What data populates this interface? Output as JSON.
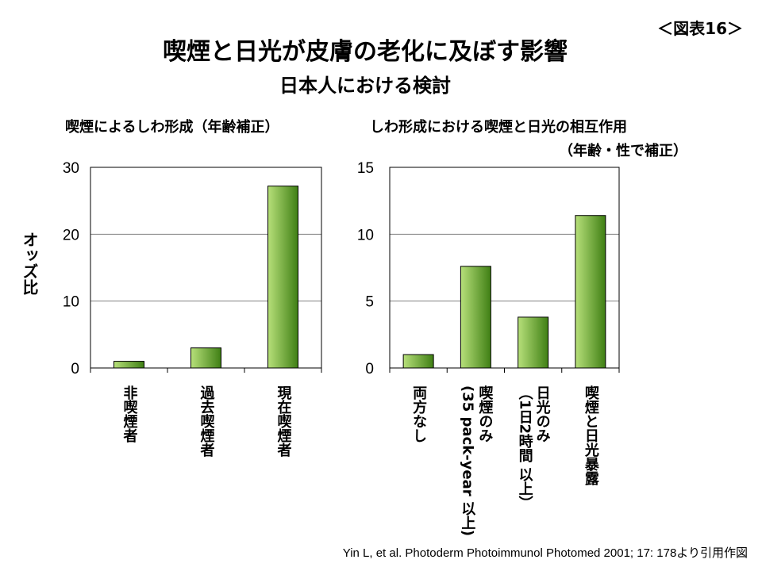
{
  "header": {
    "figure_label": "＜図表16＞",
    "title": "喫煙と日光が皮膚の老化に及ぼす影響",
    "subtitle": "日本人における検討"
  },
  "ylabel": "オッズ比",
  "source": "Yin L, et al. Photoderm Photoimmunol Photomed 2001; 17: 178より引用作図",
  "colors": {
    "bar_light": "#b7e07a",
    "bar_dark": "#3f7f14",
    "grid": "#808080"
  },
  "chart_data": [
    {
      "type": "bar",
      "title": "喫煙によるしわ形成（年齢補正）",
      "subtitle": "",
      "categories": [
        "非喫煙者",
        "過去喫煙者",
        "現在喫煙者"
      ],
      "values": [
        1.0,
        3.0,
        27.2
      ],
      "ylim": [
        0,
        30
      ],
      "yticks": [
        0,
        10,
        20,
        30
      ],
      "ylabel": "オッズ比",
      "grid": true
    },
    {
      "type": "bar",
      "title": "しわ形成における喫煙と日光の相互作用",
      "subtitle": "（年齢・性で補正）",
      "categories": [
        "両方なし",
        "喫煙のみ\n(35 pack-year 以上)",
        "日光のみ\n（1日2時間 以上）",
        "喫煙と日光暴露"
      ],
      "values": [
        1.0,
        7.6,
        3.8,
        11.4
      ],
      "ylim": [
        0,
        15
      ],
      "yticks": [
        0,
        5,
        10,
        15
      ],
      "grid": true
    }
  ]
}
